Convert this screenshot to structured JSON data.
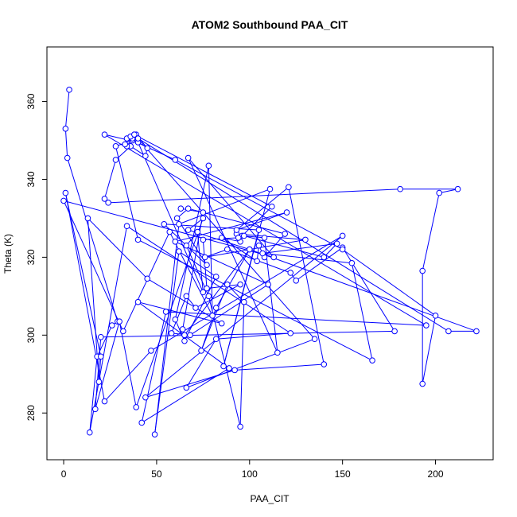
{
  "chart_data": {
    "type": "line",
    "title": "ATOM2 Southbound PAA_CIT",
    "xlabel": "PAA_CIT",
    "ylabel": "Theta (K)",
    "xlim": [
      -9,
      231
    ],
    "ylim": [
      268,
      374
    ],
    "xticks": [
      0,
      50,
      100,
      150,
      200
    ],
    "yticks": [
      280,
      300,
      320,
      340,
      360
    ],
    "grid": false,
    "legend": "none",
    "series": [
      {
        "color": "#0000ff",
        "marker": "open-circle",
        "points": [
          [
            3,
            363
          ],
          [
            1,
            353
          ],
          [
            2,
            345.5
          ],
          [
            29,
            303.5
          ],
          [
            26,
            302.5
          ],
          [
            18,
            294.5
          ],
          [
            14,
            275
          ],
          [
            34,
            328
          ],
          [
            122,
            300.5
          ],
          [
            82,
            299
          ],
          [
            66,
            286.5
          ],
          [
            135,
            299
          ],
          [
            38,
            351.5
          ],
          [
            112,
            333
          ],
          [
            96,
            325.5
          ],
          [
            108,
            325
          ],
          [
            115,
            295.5
          ],
          [
            67,
            345.5
          ],
          [
            113,
            320
          ],
          [
            0,
            334.5
          ],
          [
            32,
            301
          ],
          [
            57,
            326.5
          ],
          [
            80,
            305
          ],
          [
            78,
            343.5
          ],
          [
            60,
            304
          ],
          [
            65,
            298.5
          ],
          [
            82,
            315
          ],
          [
            62,
            321.5
          ],
          [
            49,
            274.5
          ],
          [
            62,
            328.5
          ],
          [
            111,
            337.5
          ],
          [
            86,
            292
          ],
          [
            105,
            327
          ],
          [
            54,
            328.5
          ],
          [
            77,
            318
          ],
          [
            61,
            330
          ],
          [
            67,
            332.5
          ],
          [
            119,
            326
          ],
          [
            108,
            320
          ],
          [
            105,
            323
          ],
          [
            104,
            319
          ],
          [
            85,
            325
          ],
          [
            95,
            324
          ],
          [
            93,
            326
          ],
          [
            130,
            324.5
          ],
          [
            76,
            320
          ],
          [
            88,
            322
          ],
          [
            122,
            316
          ],
          [
            125,
            314
          ],
          [
            150,
            322.5
          ],
          [
            178,
            301
          ],
          [
            20,
            299.5
          ],
          [
            17,
            281
          ],
          [
            30,
            303.5
          ],
          [
            39,
            281.5
          ],
          [
            75,
            330
          ],
          [
            67,
            327
          ],
          [
            100,
            322
          ],
          [
            82,
            307
          ],
          [
            74,
            296
          ],
          [
            88,
            313
          ],
          [
            97,
            308.5
          ],
          [
            95,
            276.5
          ],
          [
            78,
            310
          ],
          [
            66,
            323
          ],
          [
            72,
            326.5
          ],
          [
            75,
            311
          ],
          [
            40,
            349.5
          ],
          [
            22,
            351.5
          ],
          [
            195,
            302.5
          ],
          [
            55,
            306
          ],
          [
            42,
            277.5
          ],
          [
            89,
            291.5
          ],
          [
            40,
            308.5
          ],
          [
            85,
            303
          ],
          [
            45,
            314.5
          ],
          [
            13,
            330
          ],
          [
            19,
            288
          ],
          [
            20,
            294.5
          ],
          [
            1,
            336.5
          ],
          [
            22,
            283
          ],
          [
            47,
            296
          ],
          [
            150,
            325.5
          ],
          [
            44,
            284
          ],
          [
            92,
            291
          ],
          [
            140,
            292.5
          ],
          [
            121,
            338
          ],
          [
            93,
            327
          ],
          [
            120,
            331.5
          ],
          [
            60,
            324
          ],
          [
            110,
            313
          ],
          [
            68,
            300
          ],
          [
            58,
            300.5
          ],
          [
            66,
            310
          ],
          [
            71,
            307
          ],
          [
            95,
            313
          ],
          [
            77,
            312
          ],
          [
            75,
            324.5
          ],
          [
            94,
            325
          ],
          [
            97,
            325.5
          ],
          [
            140,
            320
          ],
          [
            147,
            323.5
          ],
          [
            107,
            321
          ],
          [
            155,
            318.5
          ],
          [
            166,
            293.5
          ],
          [
            40,
            324.5
          ],
          [
            28,
            348.5
          ],
          [
            37,
            350
          ],
          [
            60,
            345
          ],
          [
            150,
            322
          ],
          [
            200,
            305
          ],
          [
            193,
            287.5
          ],
          [
            193,
            316.5
          ],
          [
            202,
            336.5
          ],
          [
            212,
            337.5
          ],
          [
            181,
            337.5
          ],
          [
            24,
            334
          ],
          [
            22,
            335
          ],
          [
            28,
            345
          ],
          [
            36,
            348.5
          ],
          [
            44,
            346
          ],
          [
            45,
            348
          ],
          [
            39,
            351.5
          ],
          [
            37,
            350.5
          ],
          [
            34,
            348.5
          ],
          [
            33,
            349
          ],
          [
            34,
            350.5
          ],
          [
            36,
            351
          ],
          [
            38,
            351.5
          ],
          [
            40,
            350.5
          ],
          [
            207,
            301
          ],
          [
            222,
            301
          ],
          [
            100,
            322
          ],
          [
            65,
            300
          ],
          [
            64,
            301.5
          ],
          [
            75,
            331.5
          ],
          [
            63,
            332.5
          ]
        ]
      }
    ]
  }
}
